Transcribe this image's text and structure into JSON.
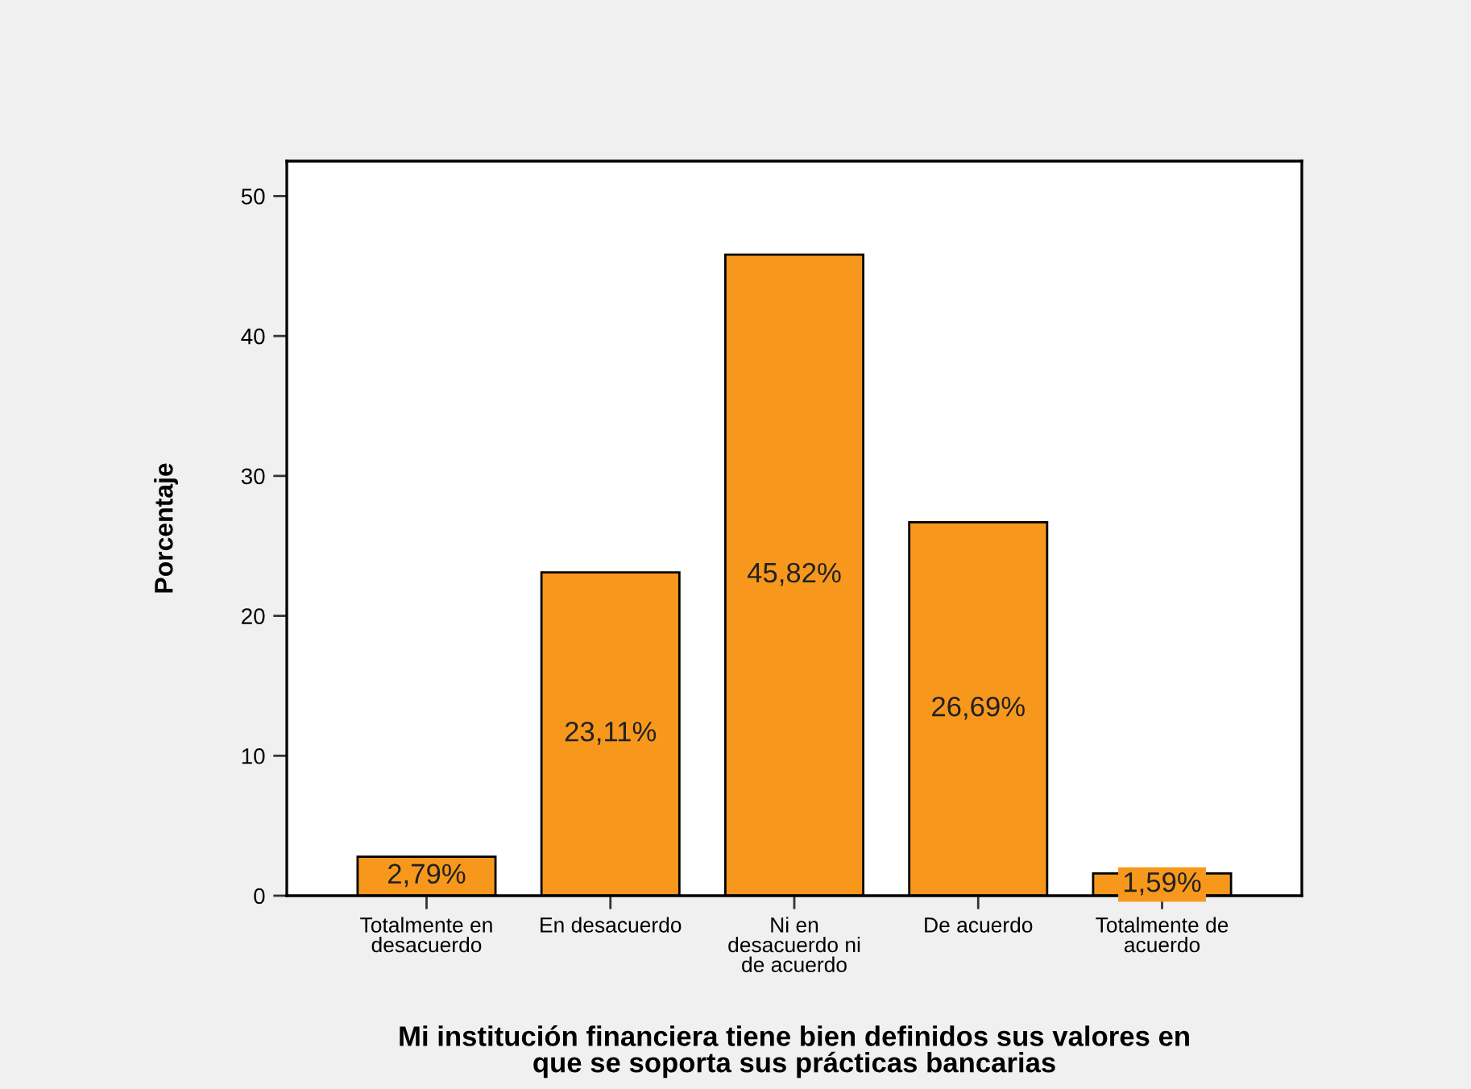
{
  "chart_data": {
    "type": "bar",
    "xlabel": "Mi institución financiera tiene bien definidos sus valores en\nque se soporta sus prácticas bancarias",
    "ylabel": "Porcentaje",
    "categories": [
      "Totalmente en\ndesacuerdo",
      "En desacuerdo",
      "Ni en\ndesacuerdo ni\nde acuerdo",
      "De acuerdo",
      "Totalmente de\nacuerdo"
    ],
    "values": [
      2.79,
      23.11,
      45.82,
      26.69,
      1.59
    ],
    "value_labels": [
      "2,79%",
      "23,11%",
      "45,82%",
      "26,69%",
      "1,59%"
    ],
    "color": "#f7981d",
    "ylim": [
      0,
      52.5
    ],
    "yticks": [
      0,
      10,
      20,
      30,
      40,
      50
    ],
    "grid": false,
    "legend": false
  }
}
